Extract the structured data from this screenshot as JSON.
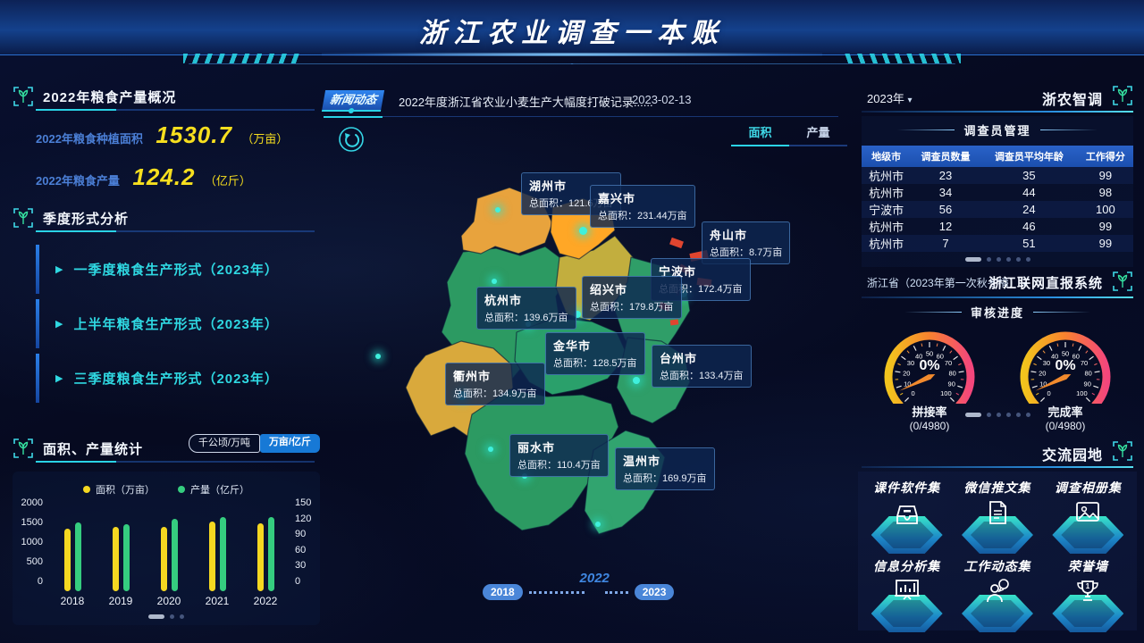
{
  "header": {
    "title": "浙江农业调查一本账"
  },
  "panels": {
    "overview": {
      "title": "2022年粮食产量概况",
      "stats": [
        {
          "label": "2022年粮食种植面积",
          "value": "1530.7",
          "unit": "（万亩）"
        },
        {
          "label": "2022年粮食产量",
          "value": "124.2",
          "unit": "（亿斤）"
        }
      ]
    },
    "quarterly": {
      "title": "季度形式分析",
      "items": [
        {
          "label": "一季度粮食生产形式（2023年）"
        },
        {
          "label": "上半年粮食生产形式（2023年）"
        },
        {
          "label": "三季度粮食生产形式（2023年）"
        }
      ]
    },
    "stats_chart": {
      "title": "面积、产量统计",
      "unit_toggle": {
        "inactive": "千公顷/万吨",
        "active": "万亩/亿斤"
      }
    }
  },
  "news": {
    "badge": "新闻动态",
    "text": "2022年度浙江省农业小麦生产大幅度打破记录......",
    "date": "2023-02-13"
  },
  "map": {
    "tabs": [
      {
        "label": "面积"
      },
      {
        "label": "产量"
      }
    ],
    "area_prefix": "总面积：",
    "cities": [
      {
        "name": "湖州市",
        "value": "121.6万亩"
      },
      {
        "name": "嘉兴市",
        "value": "231.44万亩"
      },
      {
        "name": "舟山市",
        "value": "8.7万亩"
      },
      {
        "name": "宁波市",
        "value": "172.4万亩"
      },
      {
        "name": "绍兴市",
        "value": "179.8万亩"
      },
      {
        "name": "杭州市",
        "value": "139.6万亩"
      },
      {
        "name": "金华市",
        "value": "128.5万亩"
      },
      {
        "name": "台州市",
        "value": "133.4万亩"
      },
      {
        "name": "衢州市",
        "value": "134.9万亩"
      },
      {
        "name": "丽水市",
        "value": "110.4万亩"
      },
      {
        "name": "温州市",
        "value": "169.9万亩"
      }
    ],
    "timeline": {
      "start": "2018",
      "current": "2022",
      "end": "2023"
    }
  },
  "right": {
    "survey": {
      "year_select": "2023年",
      "brand": "浙农智调",
      "panel_title": "调查员管理",
      "table": {
        "headers": [
          "地级市",
          "调查员数量",
          "调查员平均年龄",
          "工作得分"
        ],
        "rows": [
          [
            "杭州市",
            "23",
            "35",
            "99"
          ],
          [
            "杭州市",
            "34",
            "44",
            "98"
          ],
          [
            "宁波市",
            "56",
            "24",
            "100"
          ],
          [
            "杭州市",
            "12",
            "46",
            "99"
          ],
          [
            "杭州市",
            "7",
            "51",
            "99"
          ]
        ]
      }
    },
    "report": {
      "select": "浙江省（2023年第一次秋冬播）",
      "brand": "浙江联网直报系统",
      "panel_title": "审核进度",
      "gauges": [
        {
          "value_label": "0%",
          "label": "拼接率",
          "sub": "(0/4980)"
        },
        {
          "value_label": "0%",
          "label": "完成率",
          "sub": "(0/4980)"
        }
      ]
    },
    "exchange": {
      "brand": "交流园地",
      "items": [
        {
          "label": "课件软件集"
        },
        {
          "label": "微信推文集"
        },
        {
          "label": "调查相册集"
        },
        {
          "label": "信息分析集"
        },
        {
          "label": "工作动态集"
        },
        {
          "label": "荣誉墙"
        }
      ]
    }
  },
  "chart_data": [
    {
      "type": "bar",
      "title": "面积、产量统计",
      "categories": [
        "2018",
        "2019",
        "2020",
        "2021",
        "2022"
      ],
      "series": [
        {
          "name": "面积（万亩）",
          "color": "#f5d821",
          "axis": "left",
          "values": [
            1400,
            1435,
            1450,
            1555,
            1530.7
          ]
        },
        {
          "name": "产量（亿斤）",
          "color": "#35cd7f",
          "axis": "right",
          "values": [
            116,
            112,
            122,
            124,
            124.2
          ]
        }
      ],
      "left_axis": {
        "ticks": [
          0,
          500,
          1000,
          1500,
          2000
        ],
        "max": 2000
      },
      "right_axis": {
        "ticks": [
          0,
          30,
          60,
          90,
          120,
          150
        ],
        "max": 150
      },
      "legend_position": "top",
      "grid": false
    },
    {
      "type": "gauge",
      "label": "拼接率",
      "sub": "(0/4980)",
      "value": 0,
      "min": 0,
      "max": 100,
      "tick_step": 10,
      "value_label": "0%"
    },
    {
      "type": "gauge",
      "label": "完成率",
      "sub": "(0/4980)",
      "value": 0,
      "min": 0,
      "max": 100,
      "tick_step": 10,
      "value_label": "0%"
    }
  ]
}
